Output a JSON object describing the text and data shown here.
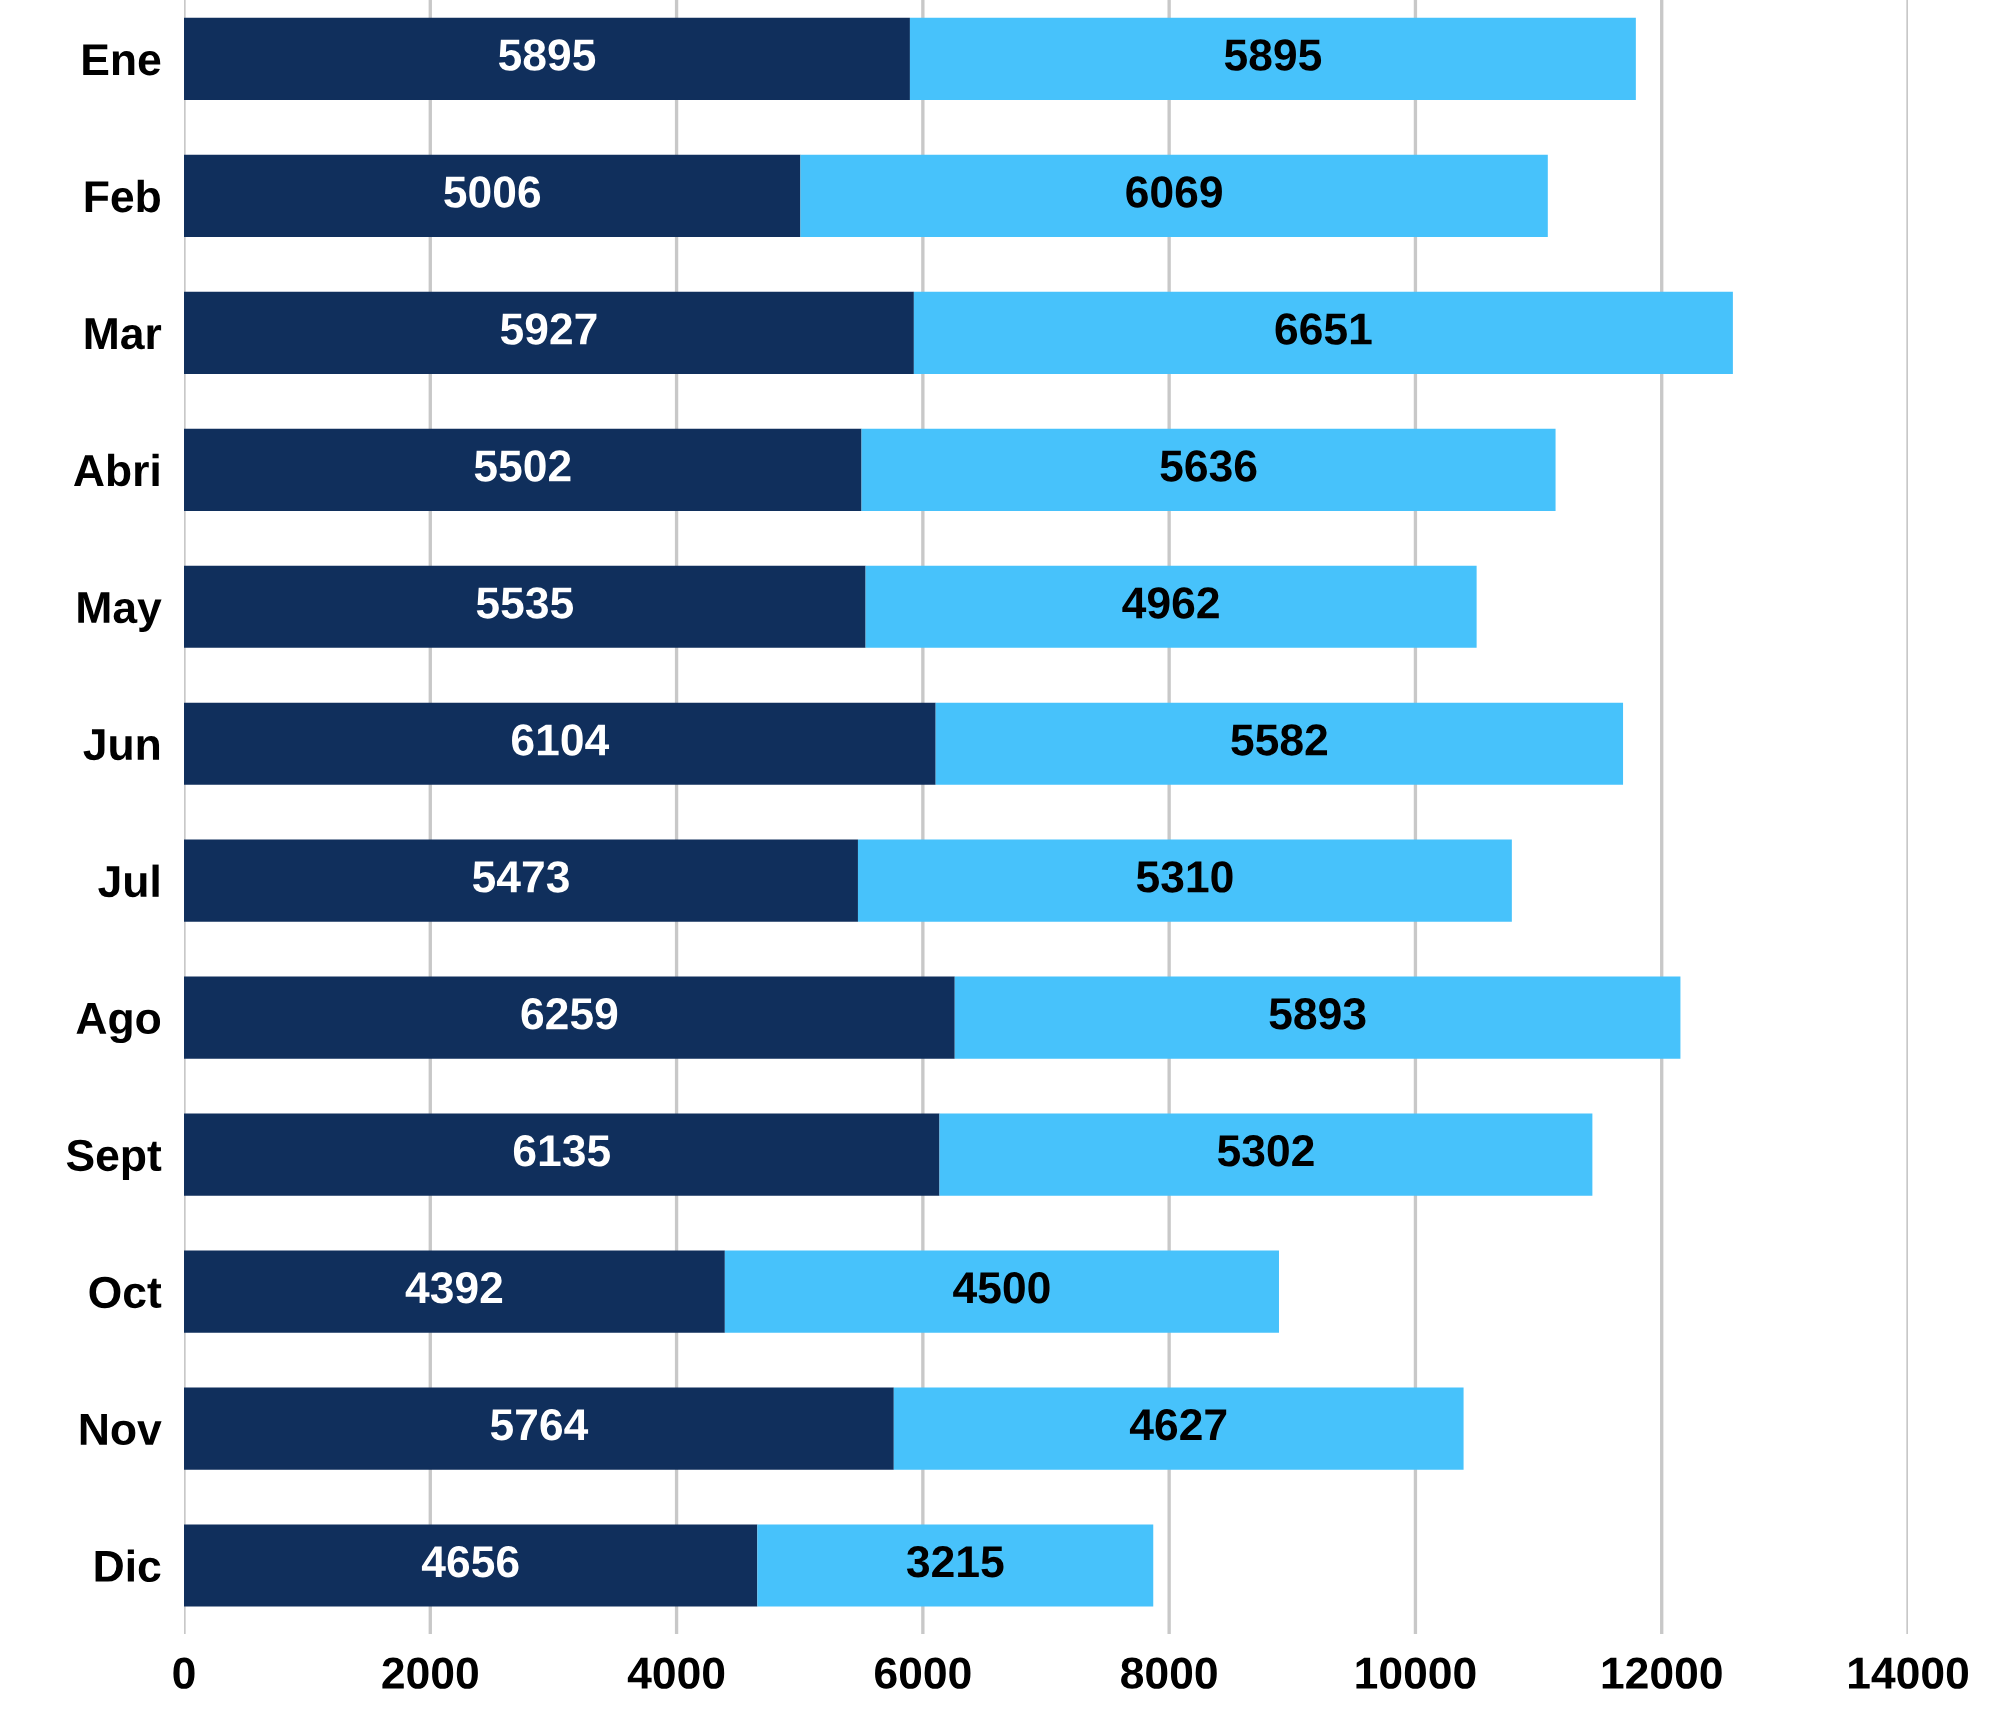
{
  "chart_data": {
    "type": "bar",
    "orientation": "horizontal",
    "stacked": true,
    "categories": [
      "Ene",
      "Feb",
      "Mar",
      "Abri",
      "May",
      "Jun",
      "Jul",
      "Ago",
      "Sept",
      "Oct",
      "Nov",
      "Dic"
    ],
    "series": [
      {
        "color": "#102f5c",
        "values": [
          5895,
          5006,
          5927,
          5502,
          5535,
          6104,
          5473,
          6259,
          6135,
          4392,
          5764,
          4656
        ]
      },
      {
        "color": "#47c2fb",
        "values": [
          5895,
          6069,
          6651,
          5636,
          4962,
          5582,
          5310,
          5893,
          5302,
          4500,
          4627,
          3215
        ]
      }
    ],
    "xlim": [
      0,
      14000
    ],
    "xticks": [
      0,
      2000,
      4000,
      6000,
      8000,
      10000,
      12000,
      14000
    ],
    "grid": "x",
    "data_labels": true,
    "legend": false
  }
}
